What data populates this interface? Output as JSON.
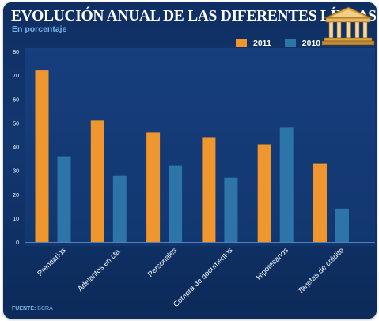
{
  "title": "EVOLUCIÓN ANUAL DE LAS DIFERENTES LÍNEAS",
  "subtitle": "En porcentaje",
  "source_label": "FUENTE:",
  "source_value": "BCRA",
  "colors": {
    "series_2011": "#f0962e",
    "series_2010": "#2d74a8",
    "text": "#ffffff",
    "accent_text": "#79b4e6"
  },
  "icons": {
    "logo": "bank-building-icon"
  },
  "chart_data": {
    "type": "bar",
    "categories": [
      "Prendarios",
      "Adelantos en cta.",
      "Personales",
      "Compra de documentos",
      "Hipotecarios",
      "Tarjetas de crédito"
    ],
    "series": [
      {
        "name": "2011",
        "values": [
          72,
          51,
          46,
          44,
          41,
          33
        ]
      },
      {
        "name": "2010",
        "values": [
          36,
          28,
          32,
          27,
          48,
          14
        ]
      }
    ],
    "yticks": [
      0,
      10,
      20,
      30,
      40,
      50,
      60,
      70,
      80
    ],
    "ylim": [
      0,
      80
    ],
    "legend": "top-right",
    "grid": false
  }
}
